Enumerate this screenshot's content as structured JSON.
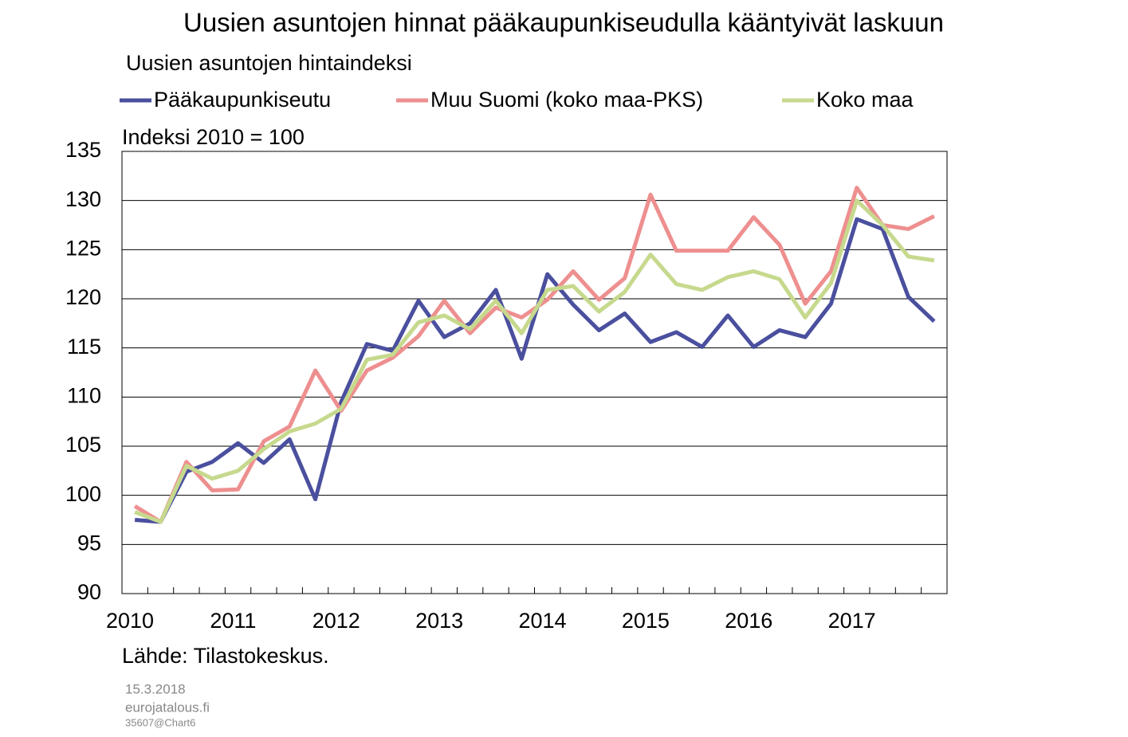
{
  "chart_data": {
    "type": "line",
    "title": "Uusien asuntojen hinnat pääkaupunkiseudulla kääntyivät laskuun",
    "subtitle": "Uusien asuntojen hintaindeksi",
    "y_label": "Indeksi 2010 = 100",
    "source": "Lähde: Tilastokeskus.",
    "date": "15.3.2018",
    "website": "eurojatalous.fi",
    "code": "35607@Chart6",
    "categories": [
      "2010",
      null,
      null,
      null,
      "2011",
      null,
      null,
      null,
      "2012",
      null,
      null,
      null,
      "2013",
      null,
      null,
      null,
      "2014",
      null,
      null,
      null,
      "2015",
      null,
      null,
      null,
      "2016",
      null,
      null,
      null,
      "2017",
      null,
      null,
      null
    ],
    "series": [
      {
        "name": "Pääkaupunkiseutu",
        "color": "#4a4f9e",
        "values": [
          97.5,
          97.3,
          102.4,
          103.4,
          105.3,
          103.3,
          105.7,
          99.6,
          109.5,
          115.4,
          114.7,
          119.8,
          116.1,
          117.5,
          120.9,
          113.9,
          122.5,
          119.4,
          116.8,
          118.5,
          115.6,
          116.6,
          115.1,
          118.3,
          115.1,
          116.8,
          116.1,
          119.5,
          128.1,
          127.1,
          120.2,
          117.7
        ]
      },
      {
        "name": "Muu Suomi (koko maa-PKS)",
        "color": "#ee8f8f",
        "values": [
          98.9,
          97.3,
          103.4,
          100.5,
          100.6,
          105.5,
          107.0,
          112.7,
          108.6,
          112.7,
          114.0,
          116.2,
          119.8,
          116.5,
          119.1,
          118.1,
          119.9,
          122.8,
          119.9,
          122.1,
          130.6,
          124.9,
          124.9,
          124.9,
          128.3,
          125.5,
          119.5,
          122.8,
          131.3,
          127.5,
          127.1,
          128.4
        ]
      },
      {
        "name": "Koko maa",
        "color": "#c6d98d",
        "values": [
          98.3,
          97.3,
          103.0,
          101.7,
          102.5,
          104.7,
          106.5,
          107.3,
          108.8,
          113.8,
          114.3,
          117.6,
          118.3,
          116.9,
          119.8,
          116.5,
          120.9,
          121.3,
          118.7,
          120.7,
          124.5,
          121.5,
          120.9,
          122.2,
          122.8,
          122.0,
          118.1,
          121.6,
          130.0,
          127.5,
          124.3,
          123.9
        ]
      }
    ],
    "ylim": [
      90,
      135
    ],
    "yticks": [
      90,
      95,
      100,
      105,
      110,
      115,
      120,
      125,
      130,
      135
    ],
    "grid": true
  }
}
